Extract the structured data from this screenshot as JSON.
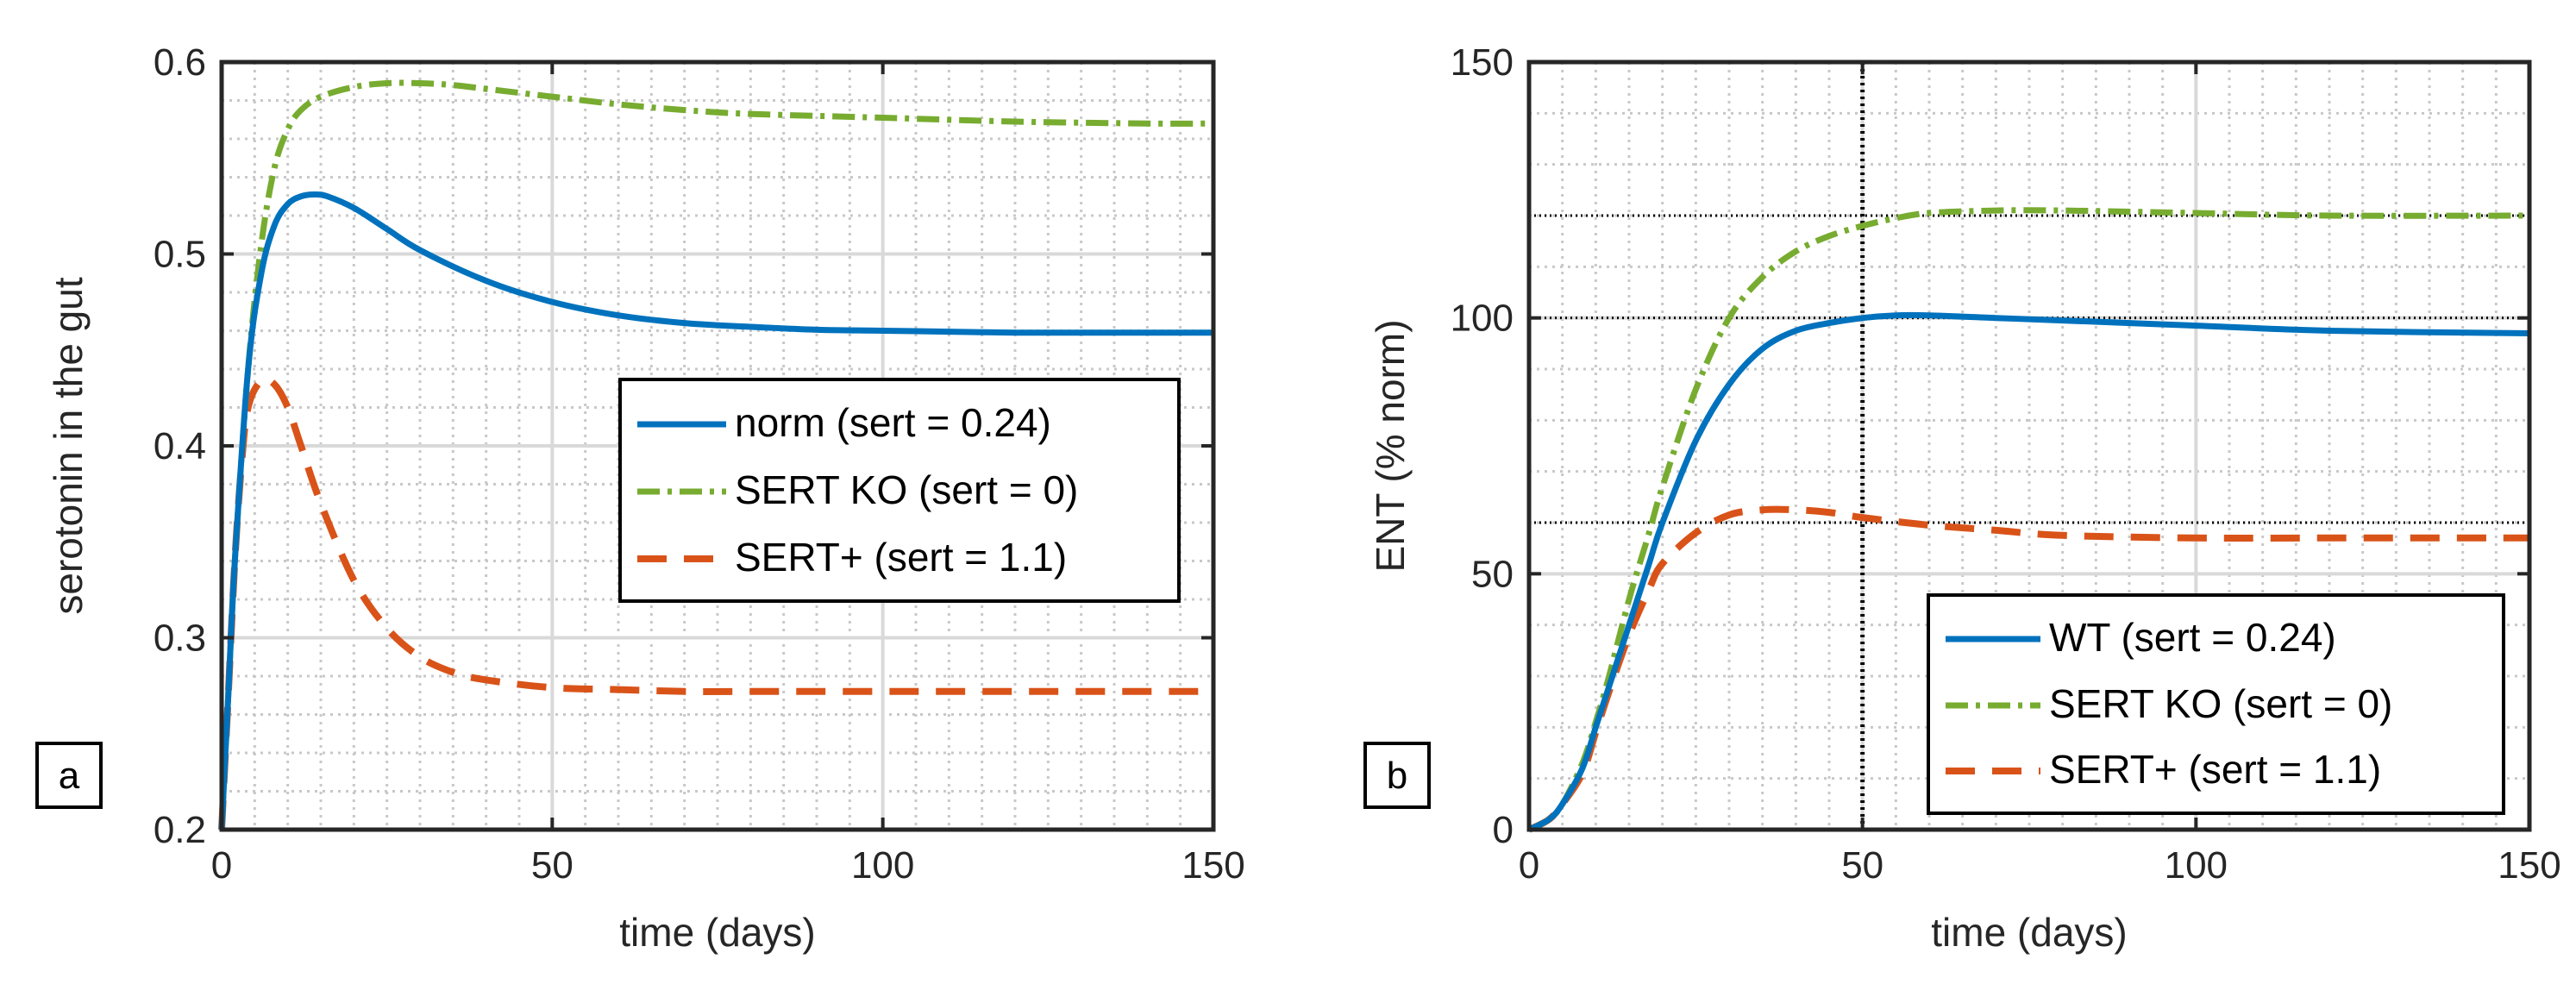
{
  "colors": {
    "norm": "#0072BD",
    "ko": "#77AC30",
    "plus": "#D95319",
    "axis": "#262626",
    "grid": "#c8c8c8"
  },
  "chart_data": [
    {
      "type": "line",
      "panel_label": "a",
      "xlabel": "time (days)",
      "ylabel": "serotonin in the gut",
      "xlim": [
        0,
        150
      ],
      "ylim": [
        0.2,
        0.6
      ],
      "xticks": [
        0,
        50,
        100,
        150
      ],
      "xtick_labels": [
        "0",
        "50",
        "100",
        "150"
      ],
      "yticks": [
        0.2,
        0.3,
        0.4,
        0.5,
        0.6
      ],
      "ytick_labels": [
        "0.2",
        "0.3",
        "0.4",
        "0.5",
        "0.6"
      ],
      "grid": true,
      "legend_position": "center-right",
      "series": [
        {
          "name": "norm (sert = 0.24)",
          "style": "solid",
          "color_key": "norm",
          "x": [
            0,
            1,
            2,
            4,
            6,
            8,
            10,
            12,
            14,
            16,
            20,
            25,
            30,
            40,
            50,
            60,
            70,
            80,
            90,
            100,
            110,
            120,
            130,
            140,
            150
          ],
          "y": [
            0.2,
            0.27,
            0.34,
            0.44,
            0.49,
            0.515,
            0.526,
            0.53,
            0.531,
            0.53,
            0.524,
            0.513,
            0.502,
            0.486,
            0.475,
            0.468,
            0.464,
            0.462,
            0.4605,
            0.46,
            0.4595,
            0.459,
            0.459,
            0.459,
            0.459
          ]
        },
        {
          "name": "SERT KO (sert = 0)",
          "style": "dashdot",
          "color_key": "ko",
          "x": [
            0,
            1,
            2,
            4,
            6,
            8,
            10,
            12,
            15,
            20,
            25,
            30,
            35,
            40,
            50,
            60,
            70,
            80,
            100,
            120,
            140,
            150
          ],
          "y": [
            0.2,
            0.27,
            0.34,
            0.44,
            0.505,
            0.545,
            0.565,
            0.575,
            0.582,
            0.587,
            0.589,
            0.589,
            0.588,
            0.586,
            0.582,
            0.578,
            0.575,
            0.573,
            0.571,
            0.569,
            0.568,
            0.568
          ]
        },
        {
          "name": "SERT+ (sert = 1.1)",
          "style": "dashed",
          "color_key": "plus",
          "x": [
            0,
            1,
            2,
            3,
            4,
            6,
            8,
            10,
            12,
            15,
            20,
            25,
            30,
            35,
            40,
            50,
            60,
            70,
            80,
            100,
            120,
            150
          ],
          "y": [
            0.2,
            0.27,
            0.34,
            0.39,
            0.42,
            0.434,
            0.432,
            0.42,
            0.4,
            0.37,
            0.33,
            0.305,
            0.29,
            0.282,
            0.278,
            0.274,
            0.273,
            0.272,
            0.272,
            0.272,
            0.272,
            0.272
          ]
        }
      ]
    },
    {
      "type": "line",
      "panel_label": "b",
      "xlabel": "time (days)",
      "ylabel": "ENT (% norm)",
      "xlim": [
        0,
        150
      ],
      "ylim": [
        0,
        150
      ],
      "xticks": [
        0,
        50,
        100,
        150
      ],
      "xtick_labels": [
        "0",
        "50",
        "100",
        "150"
      ],
      "yticks": [
        0,
        50,
        100,
        150
      ],
      "ytick_labels": [
        "0",
        "50",
        "100",
        "150"
      ],
      "grid": true,
      "legend_position": "bottom-right",
      "reference_lines": {
        "horizontal": [
          120,
          100,
          60
        ],
        "vertical": [
          50
        ]
      },
      "series": [
        {
          "name": "WT (sert = 0.24)",
          "style": "solid",
          "color_key": "norm",
          "x": [
            0,
            3,
            5,
            8,
            10,
            12,
            15,
            18,
            20,
            25,
            30,
            35,
            40,
            45,
            50,
            55,
            60,
            70,
            80,
            100,
            120,
            150
          ],
          "y": [
            0,
            2,
            5,
            12,
            20,
            28,
            40,
            52,
            60,
            76,
            87,
            94,
            97.5,
            99,
            100,
            100.5,
            100.5,
            100,
            99.5,
            98.5,
            97.5,
            97
          ]
        },
        {
          "name": "SERT KO (sert = 0)",
          "style": "dashdot",
          "color_key": "ko",
          "x": [
            0,
            3,
            5,
            8,
            10,
            12,
            15,
            18,
            20,
            25,
            30,
            35,
            40,
            45,
            50,
            55,
            60,
            70,
            80,
            100,
            120,
            150
          ],
          "y": [
            0,
            2,
            5,
            13,
            21,
            30,
            45,
            58,
            67,
            86,
            100,
            108,
            113,
            116,
            118,
            119.5,
            120.5,
            121,
            121,
            120.5,
            120,
            120
          ]
        },
        {
          "name": "SERT+ (sert = 1.1)",
          "style": "dashed",
          "color_key": "plus",
          "x": [
            0,
            3,
            5,
            8,
            10,
            12,
            15,
            18,
            20,
            25,
            30,
            35,
            40,
            45,
            50,
            60,
            70,
            80,
            100,
            120,
            150
          ],
          "y": [
            0,
            2,
            5,
            11,
            19,
            27,
            38,
            47,
            52,
            58,
            61.5,
            62.5,
            62.5,
            62,
            61,
            59.5,
            58.5,
            57.5,
            57,
            57,
            57
          ]
        }
      ]
    }
  ]
}
